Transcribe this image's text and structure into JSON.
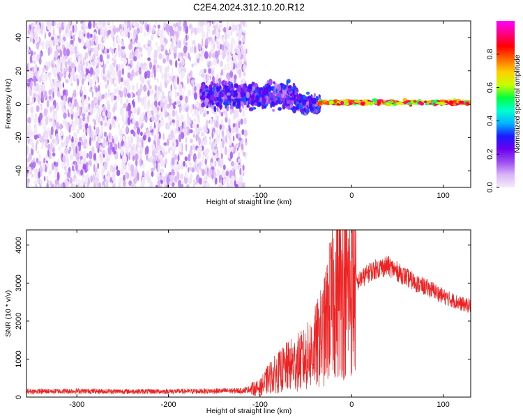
{
  "title": "C2E4.2024.312.10.20.R12",
  "colors": {
    "snr_line": "#ee2222",
    "colorbar_stops": [
      "#f4ecfa",
      "#d9b4f7",
      "#9a4cf0",
      "#6a00f0",
      "#1a1aff",
      "#00b4ff",
      "#00ffd0",
      "#00ff40",
      "#c8ff00",
      "#ffd000",
      "#ff6a00",
      "#ff0000",
      "#ff0080",
      "#ff00ff"
    ]
  },
  "chart_data": [
    {
      "type": "heatmap",
      "xlabel": "Height of straight line (km)",
      "ylabel": "Frequency (Hz)",
      "xlim": [
        -355,
        130
      ],
      "ylim": [
        -50,
        50
      ],
      "xticks": [
        -300,
        -200,
        -100,
        0,
        100
      ],
      "yticks": [
        -40,
        -20,
        0,
        20,
        40
      ],
      "colorbar": {
        "label": "Normalized spectral amplitude",
        "range": [
          0.0,
          1.0
        ],
        "ticks": [
          0.0,
          0.2,
          0.4,
          0.6,
          0.8
        ],
        "tick_labels": [
          "0.0",
          "0.2",
          "0.4",
          "0.6",
          "0.8"
        ]
      },
      "regions": [
        {
          "x": [
            -355,
            -115
          ],
          "description_level": "noise",
          "amplitude": [
            0.0,
            0.15
          ]
        },
        {
          "x": [
            -165,
            -35
          ],
          "center_hz": 2,
          "spread_hz": 10,
          "amplitude": [
            0.1,
            0.35
          ]
        },
        {
          "x": [
            -35,
            130
          ],
          "center_hz": 1,
          "spread_hz": 3,
          "amplitude": [
            0.5,
            0.95
          ]
        }
      ],
      "grid": false
    },
    {
      "type": "line",
      "xlabel": "Height of straight line (km)",
      "ylabel": "SNR (10 * v/v)",
      "xlim": [
        -355,
        130
      ],
      "ylim": [
        0,
        4400
      ],
      "xticks": [
        -300,
        -200,
        -100,
        0,
        100
      ],
      "yticks": [
        0,
        1000,
        2000,
        3000,
        4000
      ],
      "series": [
        {
          "x": [
            -355,
            -300,
            -250,
            -200,
            -150,
            -120,
            -100,
            -90,
            -80,
            -70,
            -60,
            -50,
            -40,
            -30,
            -25,
            -20,
            -15,
            -10,
            -5,
            0,
            10,
            20,
            30,
            40,
            50,
            60,
            70,
            80,
            90,
            100,
            110,
            120,
            130
          ],
          "values": [
            150,
            160,
            150,
            150,
            160,
            170,
            250,
            500,
            650,
            800,
            900,
            1000,
            1300,
            1700,
            2200,
            2600,
            2800,
            2900,
            2800,
            2900,
            3100,
            3300,
            3400,
            3450,
            3300,
            3150,
            3000,
            2900,
            2800,
            2650,
            2550,
            2450,
            2400
          ]
        }
      ],
      "grid": false
    }
  ]
}
